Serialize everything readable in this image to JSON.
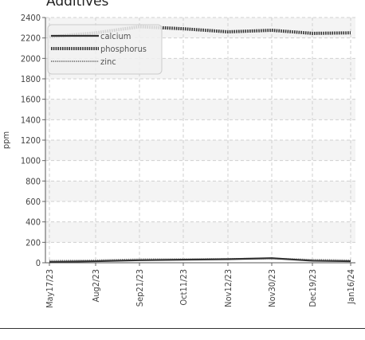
{
  "chart_data": {
    "type": "line",
    "title": "Additives",
    "ylabel": "ppm",
    "xlabel": "",
    "ylim": [
      0,
      2400
    ],
    "yticks": [
      0,
      200,
      400,
      600,
      800,
      1000,
      1200,
      1400,
      1600,
      1800,
      2000,
      2200,
      2400
    ],
    "x": [
      "May17/23",
      "Aug2/23",
      "Sep21/23",
      "Oct11/23",
      "Nov12/23",
      "Nov30/23",
      "Dec19/23",
      "Jan16/24"
    ],
    "grid": true,
    "legend": "top-left",
    "series": [
      {
        "name": "calcium",
        "style": "solid",
        "color": "#333333",
        "values": [
          8,
          15,
          25,
          30,
          35,
          45,
          20,
          15
        ]
      },
      {
        "name": "phosphorus",
        "style": "dotted-thick",
        "color": "#333333",
        "values": [
          2210,
          2250,
          2310,
          2290,
          2260,
          2275,
          2245,
          2250
        ]
      },
      {
        "name": "zinc",
        "style": "dotted-thin",
        "color": "#888888",
        "values": [
          20,
          25,
          35,
          35,
          38,
          42,
          30,
          25
        ]
      }
    ]
  }
}
